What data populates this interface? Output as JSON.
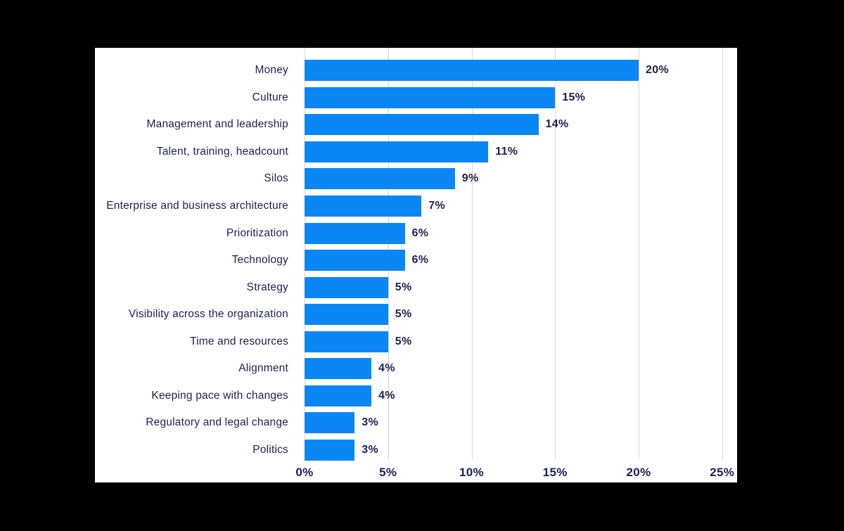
{
  "chart_data": {
    "type": "bar",
    "orientation": "horizontal",
    "title": "",
    "xlabel": "",
    "ylabel": "",
    "categories": [
      "Money",
      "Culture",
      "Management and leadership",
      "Talent, training, headcount",
      "Silos",
      "Enterprise and business architecture",
      "Prioritization",
      "Technology",
      "Strategy",
      "Visibility across the organization",
      "Time and resources",
      "Alignment",
      "Keeping pace with changes",
      "Regulatory and legal change",
      "Politics"
    ],
    "values": [
      20,
      15,
      14,
      11,
      9,
      7,
      6,
      6,
      5,
      5,
      5,
      4,
      4,
      3,
      3
    ],
    "value_labels": [
      "20%",
      "15%",
      "14%",
      "11%",
      "9%",
      "7%",
      "6%",
      "6%",
      "5%",
      "5%",
      "5%",
      "4%",
      "4%",
      "3%",
      "3%"
    ],
    "xlim": [
      0,
      25
    ],
    "x_ticks": [
      0,
      5,
      10,
      15,
      20,
      25
    ],
    "x_tick_labels": [
      "0%",
      "5%",
      "10%",
      "15%",
      "20%",
      "25%"
    ],
    "grid": "vertical",
    "legend": "none",
    "colors": {
      "bar": "#0b86f5",
      "label_text": "#1a2152",
      "value_text": "#1a2152",
      "tick_text": "#1a2152",
      "gridline": "#d7d7d7",
      "panel_bg": "#ffffff",
      "page_bg": "#000000"
    }
  }
}
